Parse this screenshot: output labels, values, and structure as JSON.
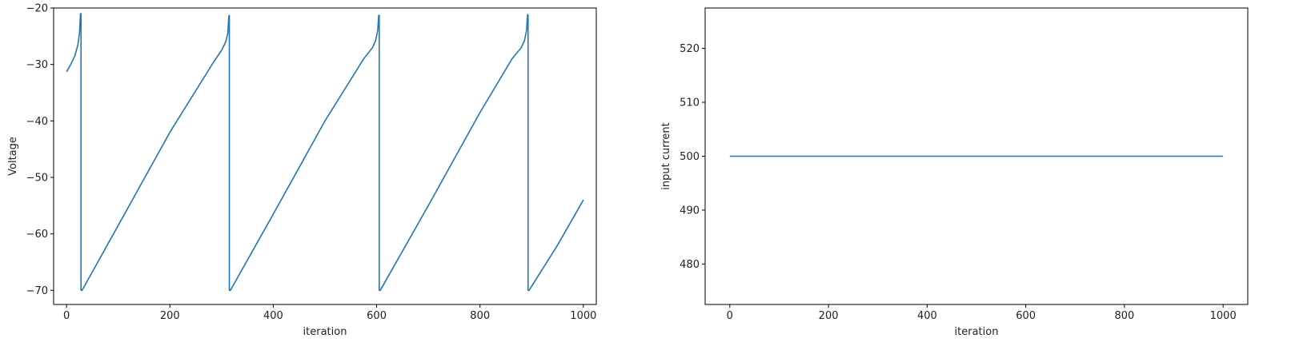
{
  "chart_data": [
    {
      "type": "line",
      "title": "",
      "xlabel": "iteration",
      "ylabel": "Voltage",
      "xlim": [
        -25,
        1025
      ],
      "ylim": [
        -72.5,
        -20
      ],
      "xticks": [
        0,
        200,
        400,
        600,
        800,
        1000
      ],
      "yticks": [
        -70,
        -60,
        -50,
        -40,
        -30,
        -20
      ],
      "xtick_labels": [
        "0",
        "200",
        "400",
        "600",
        "800",
        "1000"
      ],
      "ytick_labels": [
        "−70",
        "−60",
        "−50",
        "−40",
        "−30",
        "−20"
      ],
      "grid": false,
      "line_color": "#1f77b4",
      "series": [
        {
          "x": [
            0,
            8,
            16,
            22,
            25,
            27,
            28,
            28,
            30,
            100,
            200,
            285,
            300,
            308,
            312,
            314,
            315,
            315,
            317,
            400,
            500,
            575,
            592,
            598,
            602,
            604,
            605,
            605,
            607,
            700,
            800,
            862,
            880,
            886,
            890,
            892,
            893,
            893,
            895,
            950,
            1000
          ],
          "y": [
            -31.3,
            -30.0,
            -28.5,
            -26.5,
            -24.5,
            -21.0,
            -21.0,
            -70.0,
            -70.0,
            -58.5,
            -42.0,
            -29.5,
            -27.5,
            -26.0,
            -24.5,
            -21.5,
            -21.3,
            -70.0,
            -70.0,
            -56.5,
            -40.0,
            -29.0,
            -27.0,
            -25.8,
            -24.0,
            -21.3,
            -21.3,
            -70.0,
            -70.0,
            -55.0,
            -38.5,
            -29.0,
            -27.0,
            -25.8,
            -24.0,
            -21.2,
            -21.2,
            -70.0,
            -70.0,
            -62.0,
            -54.0
          ]
        }
      ]
    },
    {
      "type": "line",
      "title": "",
      "xlabel": "iteration",
      "ylabel": "input current",
      "xlim": [
        -50,
        1050
      ],
      "ylim": [
        472.5,
        527.5
      ],
      "xticks": [
        0,
        200,
        400,
        600,
        800,
        1000
      ],
      "yticks": [
        480,
        490,
        500,
        510,
        520
      ],
      "xtick_labels": [
        "0",
        "200",
        "400",
        "600",
        "800",
        "1000"
      ],
      "ytick_labels": [
        "480",
        "490",
        "500",
        "510",
        "520"
      ],
      "grid": false,
      "line_color": "#1f77b4",
      "series": [
        {
          "x": [
            0,
            1000
          ],
          "y": [
            500,
            500
          ]
        }
      ]
    }
  ]
}
